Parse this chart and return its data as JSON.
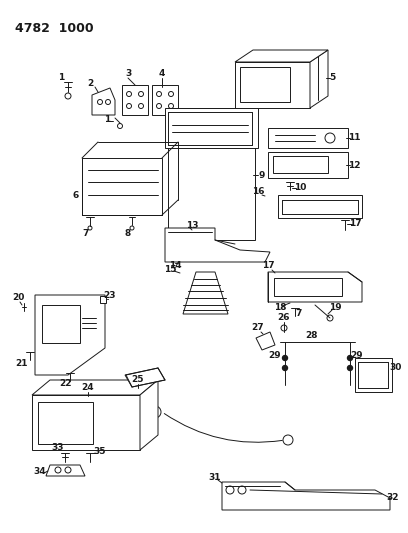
{
  "title": "4782  1000",
  "bg_color": "#ffffff",
  "line_color": "#1a1a1a",
  "title_fontsize": 9,
  "label_fontsize": 6.5,
  "fig_width": 4.08,
  "fig_height": 5.33,
  "dpi": 100
}
